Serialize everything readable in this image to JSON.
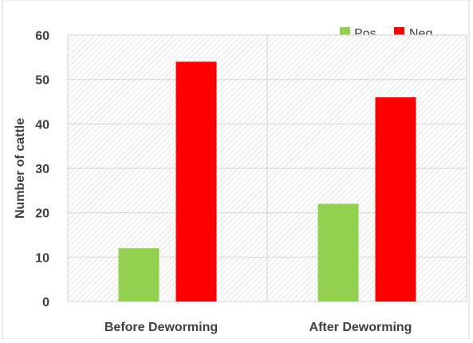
{
  "chart_data": {
    "type": "bar",
    "title": "",
    "xlabel": "",
    "ylabel": "Number of cattle",
    "categories": [
      "Before Deworming",
      "After Deworming"
    ],
    "series": [
      {
        "name": "Pos",
        "values": [
          12,
          22
        ],
        "color": "#92d050"
      },
      {
        "name": "Neg",
        "values": [
          54,
          46
        ],
        "color": "#ff0000"
      }
    ],
    "ylim": [
      0,
      60
    ],
    "yticks": [
      "0",
      "10",
      "20",
      "30",
      "40",
      "50",
      "60"
    ],
    "grid": true,
    "legend": "top-right"
  }
}
